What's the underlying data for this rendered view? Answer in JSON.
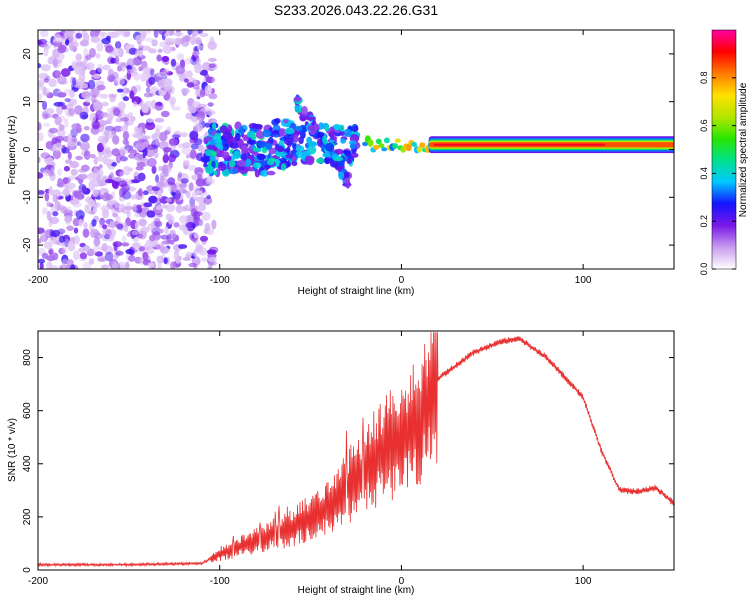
{
  "title": "S233.2026.043.22.26.G31",
  "chart_data": [
    {
      "type": "heatmap",
      "name": "spectrogram",
      "xlabel": "Height of straight line (km)",
      "ylabel": "Frequency (Hz)",
      "xlim": [
        -200,
        150
      ],
      "ylim": [
        -25,
        25
      ],
      "xticks": [
        -200,
        -100,
        0,
        100
      ],
      "yticks": [
        -20,
        -10,
        0,
        10,
        20
      ],
      "colorbar": {
        "label": "Normalized spectral amplitude",
        "range": [
          0,
          1
        ],
        "ticks": [
          0.0,
          0.2,
          0.4,
          0.6,
          0.8
        ],
        "colormap": [
          "#ffffff",
          "#c89cf0",
          "#7a18e8",
          "#1414ff",
          "#00c8ff",
          "#00e08a",
          "#28e600",
          "#b4e600",
          "#ffe000",
          "#ff7a00",
          "#ff0000",
          "#ff00a0"
        ]
      },
      "regions": [
        {
          "desc": "noise",
          "x": [
            -200,
            -103
          ],
          "f": [
            -25,
            25
          ],
          "amplitude": [
            0.05,
            0.25
          ]
        },
        {
          "desc": "onset",
          "x": [
            -108,
            -25
          ],
          "f": [
            -10,
            10
          ],
          "amplitude": [
            0.15,
            0.45
          ]
        },
        {
          "desc": "transition",
          "x": [
            -20,
            20
          ],
          "f": [
            -1,
            2
          ],
          "amplitude": [
            0.3,
            0.8
          ]
        },
        {
          "desc": "tone",
          "x": [
            20,
            150
          ],
          "f": [
            0,
            2.5
          ],
          "amplitude": [
            0.45,
            0.95
          ]
        }
      ]
    },
    {
      "type": "line",
      "name": "snr",
      "xlabel": "Height of straight line (km)",
      "ylabel": "SNR (10 * v/v)",
      "xlim": [
        -200,
        150
      ],
      "ylim": [
        0,
        900
      ],
      "xticks": [
        -200,
        -100,
        0,
        100
      ],
      "yticks": [
        0,
        200,
        400,
        600,
        800
      ],
      "color": "#e83030",
      "envelope_x": [
        -200,
        -150,
        -110,
        -100,
        -80,
        -60,
        -40,
        -20,
        -10,
        0,
        10,
        20,
        40,
        55,
        65,
        80,
        100,
        110,
        120,
        130,
        140,
        150
      ],
      "envelope_y": [
        20,
        20,
        25,
        60,
        110,
        160,
        240,
        380,
        450,
        500,
        560,
        720,
        820,
        860,
        870,
        800,
        650,
        450,
        300,
        295,
        310,
        250
      ]
    }
  ]
}
